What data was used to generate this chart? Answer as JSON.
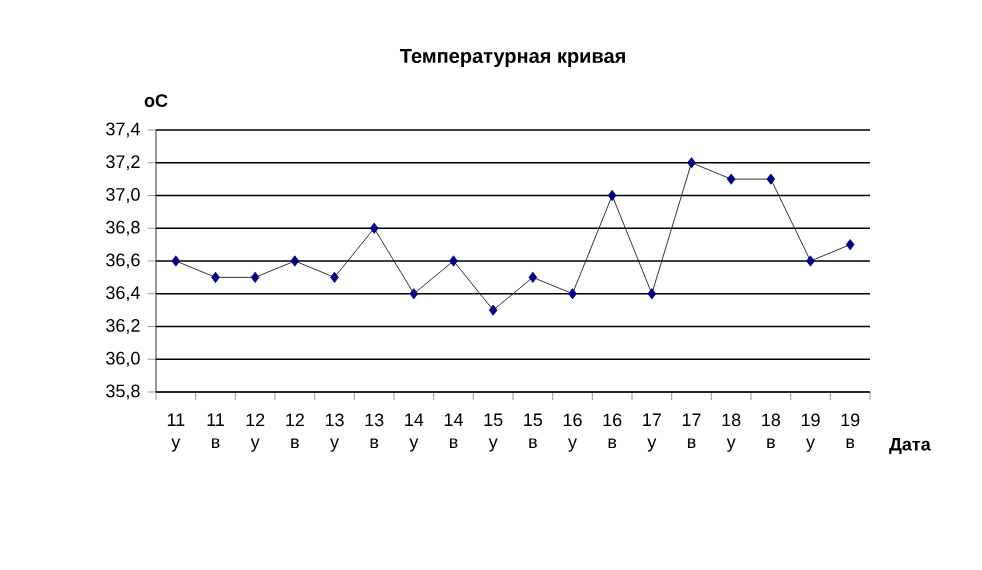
{
  "chart_data": {
    "type": "line",
    "title": "Температурная кривая",
    "xlabel": "Дата",
    "ylabel": "оС",
    "categories": [
      "11 у",
      "11 в",
      "12 у",
      "12 в",
      "13 у",
      "13 в",
      "14 у",
      "14 в",
      "15 у",
      "15 в",
      "16 у",
      "16 в",
      "17 у",
      "17 в",
      "18 у",
      "18 в",
      "19 у",
      "19 в"
    ],
    "values": [
      36.6,
      36.5,
      36.5,
      36.6,
      36.5,
      36.8,
      36.4,
      36.6,
      36.3,
      36.5,
      36.4,
      37.0,
      36.4,
      37.2,
      37.1,
      37.1,
      36.6,
      36.7
    ],
    "color": "#000080",
    "marker": "diamond",
    "line_style": "solid",
    "grid": "y",
    "ylim": [
      35.8,
      37.4
    ],
    "yticks": [
      {
        "value": 35.8,
        "label": "35,8"
      },
      {
        "value": 36.0,
        "label": "36,0"
      },
      {
        "value": 36.2,
        "label": "36,2"
      },
      {
        "value": 36.4,
        "label": "36,4"
      },
      {
        "value": 36.6,
        "label": "36,6"
      },
      {
        "value": 36.8,
        "label": "36,8"
      },
      {
        "value": 37.0,
        "label": "37,0"
      },
      {
        "value": 37.2,
        "label": "37,2"
      },
      {
        "value": 37.4,
        "label": "37,4"
      }
    ]
  }
}
